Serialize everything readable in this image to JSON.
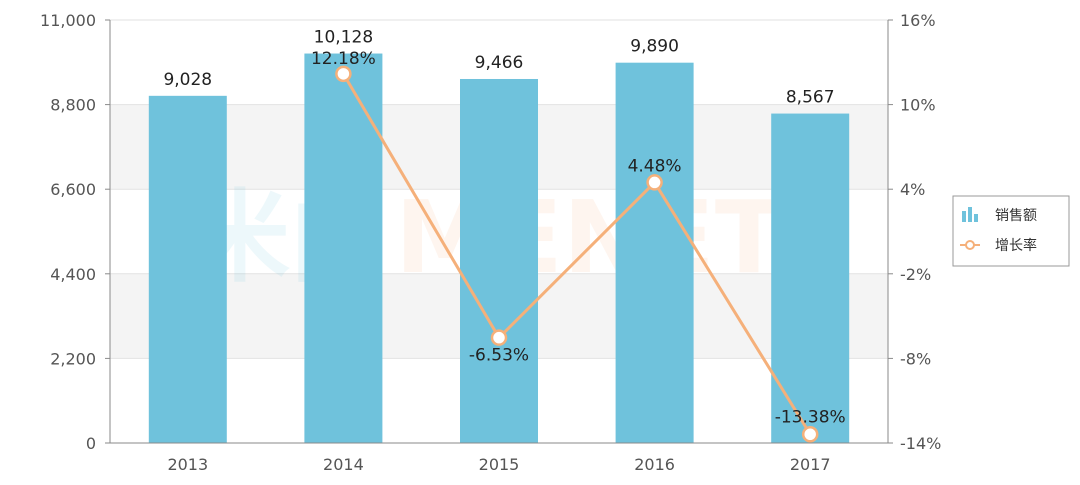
{
  "chart_data": {
    "type": "bar",
    "categories": [
      "2013",
      "2014",
      "2015",
      "2016",
      "2017"
    ],
    "series": [
      {
        "name": "销售额",
        "type": "bar",
        "axis": "left",
        "values": [
          9028,
          10128,
          9466,
          9890,
          8567
        ],
        "labels": [
          "9,028",
          "10,128",
          "9,466",
          "9,890",
          "8,567"
        ],
        "color": "#6fc2dc"
      },
      {
        "name": "增长率",
        "type": "line",
        "axis": "right",
        "values": [
          12.18,
          -6.53,
          4.48,
          -13.38
        ],
        "x": [
          "2014",
          "2015",
          "2016",
          "2017"
        ],
        "labels": [
          "12.18%",
          "-6.53%",
          "4.48%",
          "-13.38%"
        ],
        "color": "#f5b07a"
      }
    ],
    "y_left": {
      "ylim": [
        0,
        11000
      ],
      "ticks": [
        "0",
        "2,200",
        "4,400",
        "6,600",
        "8,800",
        "11,000"
      ]
    },
    "y_right": {
      "ylim": [
        -14,
        16
      ],
      "ticks": [
        "-14%",
        "-8%",
        "-2%",
        "4%",
        "10%",
        "16%"
      ]
    },
    "grid": true,
    "legend": "right",
    "watermark": "米内MENET"
  }
}
